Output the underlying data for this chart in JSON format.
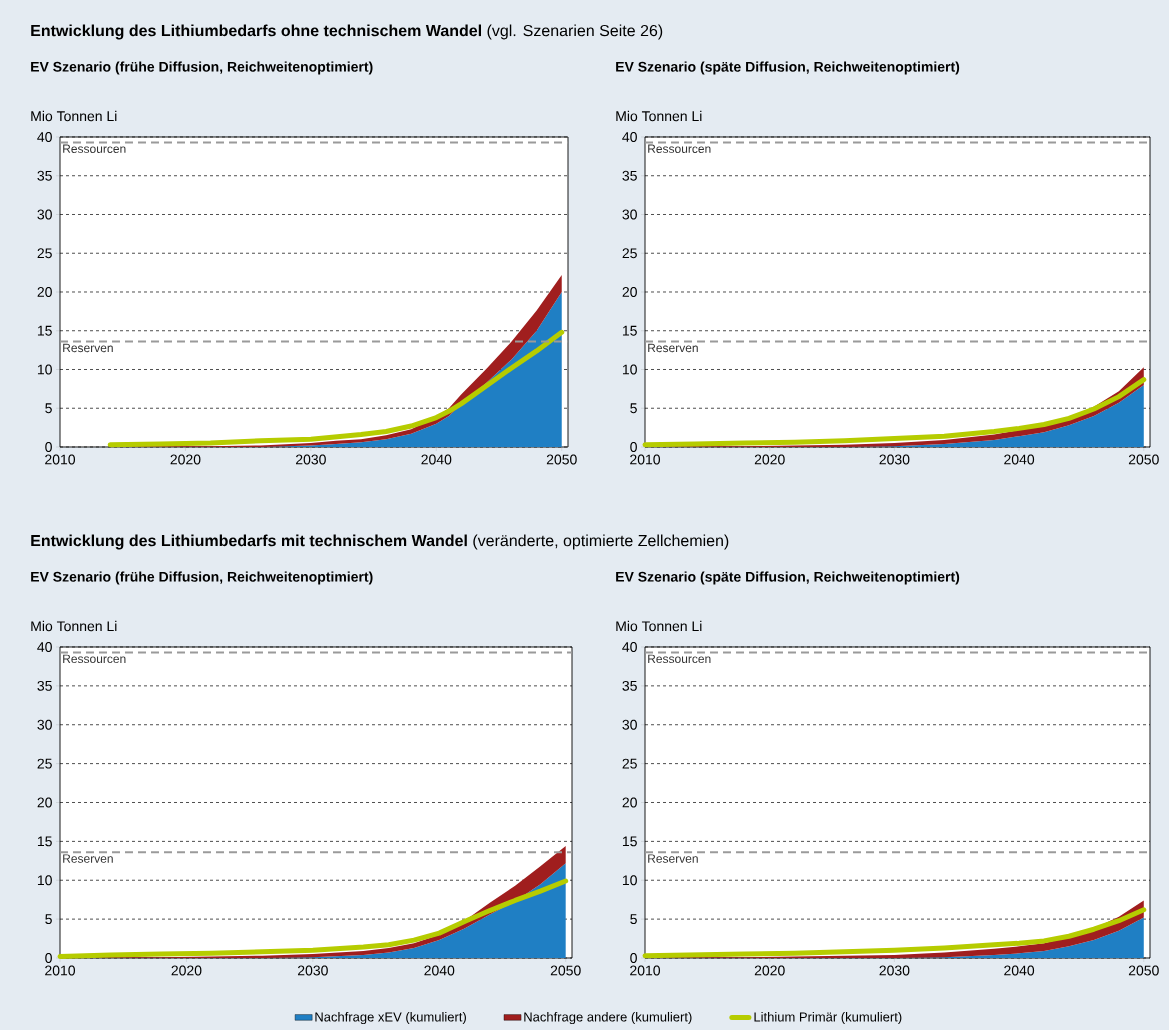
{
  "chart_data": [
    {
      "type": "area",
      "title": "**Entwicklung des Lithiumbedarfs ohne technischem Wandel** (vgl. Szenarien Seite 26)",
      "subtitle": "EV Szenario (frühe Diffusion, Reichweitenoptimiert)",
      "ylabel": "Mio Tonnen Li",
      "stacked": true,
      "grid": "y",
      "legend": false,
      "x": [
        2014,
        2018,
        2022,
        2026,
        2030,
        2032,
        2034,
        2036,
        2038,
        2040,
        2041,
        2042,
        2044,
        2046,
        2048,
        2050
      ],
      "xlim": [
        2010,
        2050.5
      ],
      "xticks": [
        2010,
        2020,
        2030,
        2040,
        2050
      ],
      "ylim": [
        0,
        40
      ],
      "yticks": [
        0,
        5,
        10,
        15,
        20,
        25,
        30,
        35,
        40
      ],
      "ref_lines": [
        {
          "axis": "y",
          "value": 39.3,
          "label": "Ressourcen",
          "color": "#9a9a9a",
          "line_style": "dashed"
        },
        {
          "axis": "y",
          "value": 13.6,
          "label": "Reserven",
          "color": "#9a9a9a",
          "line_style": "dashed"
        }
      ],
      "series": [
        {
          "color": "#1f7fc4",
          "values": [
            0,
            0,
            0,
            0,
            0.2,
            0.4,
            0.6,
            1.0,
            1.7,
            3.0,
            4.0,
            5.5,
            8.3,
            11.3,
            15.0,
            20.0
          ]
        },
        {
          "color": "#a01e1e",
          "values": [
            0.1,
            0.1,
            0.1,
            0.2,
            0.3,
            0.4,
            0.4,
            0.5,
            0.6,
            0.9,
            1.0,
            1.3,
            1.8,
            2.3,
            2.6,
            2.2
          ]
        },
        {
          "type": "line",
          "color": "#b6cc00",
          "line_style": "solid",
          "values": [
            0.3,
            0.4,
            0.5,
            0.8,
            1.0,
            1.3,
            1.6,
            2.0,
            2.7,
            3.8,
            4.6,
            5.6,
            7.9,
            10.2,
            12.4,
            14.8
          ]
        }
      ]
    },
    {
      "type": "area",
      "subtitle": "EV Szenario (späte Diffusion, Reichweitenoptimiert)",
      "ylabel": "Mio Tonnen Li",
      "stacked": true,
      "grid": "y",
      "legend": false,
      "x": [
        2010,
        2014,
        2018,
        2022,
        2026,
        2030,
        2034,
        2038,
        2040,
        2042,
        2044,
        2046,
        2048,
        2050
      ],
      "xlim": [
        2010,
        2050.5
      ],
      "xticks": [
        2010,
        2020,
        2030,
        2040,
        2050
      ],
      "ylim": [
        0,
        40
      ],
      "yticks": [
        0,
        5,
        10,
        15,
        20,
        25,
        30,
        35,
        40
      ],
      "ref_lines": [
        {
          "axis": "y",
          "value": 39.3,
          "label": "Ressourcen",
          "color": "#9a9a9a",
          "line_style": "dashed"
        },
        {
          "axis": "y",
          "value": 13.6,
          "label": "Reserven",
          "color": "#9a9a9a",
          "line_style": "dashed"
        }
      ],
      "series": [
        {
          "color": "#1f7fc4",
          "values": [
            0,
            0,
            0,
            0,
            0,
            0.1,
            0.4,
            0.9,
            1.4,
            1.9,
            2.8,
            4.0,
            5.7,
            8.0
          ]
        },
        {
          "color": "#a01e1e",
          "values": [
            0.1,
            0.1,
            0.1,
            0.2,
            0.3,
            0.4,
            0.5,
            0.7,
            0.8,
            0.9,
            1.0,
            1.2,
            1.5,
            2.3
          ]
        },
        {
          "type": "line",
          "color": "#b6cc00",
          "line_style": "solid",
          "values": [
            0.3,
            0.4,
            0.5,
            0.6,
            0.8,
            1.1,
            1.4,
            2.0,
            2.4,
            2.9,
            3.7,
            4.9,
            6.5,
            8.7
          ]
        }
      ]
    },
    {
      "type": "area",
      "title": "**Entwicklung des Lithiumbedarfs mit technischem Wandel** (veränderte, optimierte Zellchemien)",
      "subtitle": "EV Szenario (frühe Diffusion, Reichweitenoptimiert)",
      "ylabel": "Mio Tonnen Li",
      "stacked": true,
      "grid": "y",
      "legend": false,
      "x": [
        2010,
        2014,
        2018,
        2022,
        2026,
        2030,
        2034,
        2036,
        2038,
        2040,
        2042,
        2044,
        2046,
        2048,
        2050
      ],
      "xlim": [
        2010,
        2050.5
      ],
      "xticks": [
        2010,
        2020,
        2030,
        2040,
        2050
      ],
      "ylim": [
        0,
        40
      ],
      "yticks": [
        0,
        5,
        10,
        15,
        20,
        25,
        30,
        35,
        40
      ],
      "ref_lines": [
        {
          "axis": "y",
          "value": 39.3,
          "label": "Ressourcen",
          "color": "#9a9a9a",
          "line_style": "dashed"
        },
        {
          "axis": "y",
          "value": 13.6,
          "label": "Reserven",
          "color": "#9a9a9a",
          "line_style": "dashed"
        }
      ],
      "series": [
        {
          "color": "#1f7fc4",
          "values": [
            0,
            0,
            0,
            0,
            0,
            0.1,
            0.4,
            0.7,
            1.3,
            2.3,
            3.8,
            5.6,
            7.3,
            9.5,
            12.2
          ]
        },
        {
          "color": "#a01e1e",
          "values": [
            0.1,
            0.1,
            0.1,
            0.2,
            0.3,
            0.4,
            0.5,
            0.6,
            0.6,
            0.7,
            1.0,
            1.5,
            2.0,
            2.3,
            2.2
          ]
        },
        {
          "type": "line",
          "color": "#b6cc00",
          "line_style": "solid",
          "values": [
            0.2,
            0.4,
            0.5,
            0.6,
            0.8,
            1.0,
            1.4,
            1.7,
            2.3,
            3.2,
            4.7,
            6.1,
            7.4,
            8.6,
            9.9
          ]
        }
      ]
    },
    {
      "type": "area",
      "subtitle": "EV Szenario (späte Diffusion, Reichweitenoptimiert)",
      "ylabel": "Mio Tonnen Li",
      "stacked": true,
      "grid": "y",
      "legend": "bottom",
      "x": [
        2010,
        2014,
        2018,
        2022,
        2026,
        2030,
        2034,
        2038,
        2040,
        2042,
        2044,
        2046,
        2048,
        2050
      ],
      "xlim": [
        2010,
        2050.5
      ],
      "xticks": [
        2010,
        2020,
        2030,
        2040,
        2050
      ],
      "ylim": [
        0,
        40
      ],
      "yticks": [
        0,
        5,
        10,
        15,
        20,
        25,
        30,
        35,
        40
      ],
      "ref_lines": [
        {
          "axis": "y",
          "value": 39.3,
          "label": "Ressourcen",
          "color": "#9a9a9a",
          "line_style": "dashed"
        },
        {
          "axis": "y",
          "value": 13.6,
          "label": "Reserven",
          "color": "#9a9a9a",
          "line_style": "dashed"
        }
      ],
      "series": [
        {
          "name": "Nachfrage xEV (kumuliert)",
          "color": "#1f7fc4",
          "values": [
            0,
            0,
            0,
            0,
            0,
            0,
            0.1,
            0.4,
            0.6,
            0.9,
            1.5,
            2.3,
            3.5,
            5.2
          ]
        },
        {
          "name": "Nachfrage andere (kumuliert)",
          "color": "#a01e1e",
          "values": [
            0.1,
            0.1,
            0.1,
            0.2,
            0.3,
            0.4,
            0.6,
            0.8,
            0.9,
            1.0,
            1.2,
            1.5,
            1.8,
            2.2
          ]
        },
        {
          "type": "line",
          "name": "Lithium Primär (kumuliert)",
          "color": "#b6cc00",
          "line_style": "solid",
          "values": [
            0.3,
            0.4,
            0.5,
            0.6,
            0.8,
            1.0,
            1.3,
            1.7,
            1.9,
            2.2,
            2.8,
            3.7,
            4.8,
            6.2
          ]
        }
      ]
    }
  ]
}
